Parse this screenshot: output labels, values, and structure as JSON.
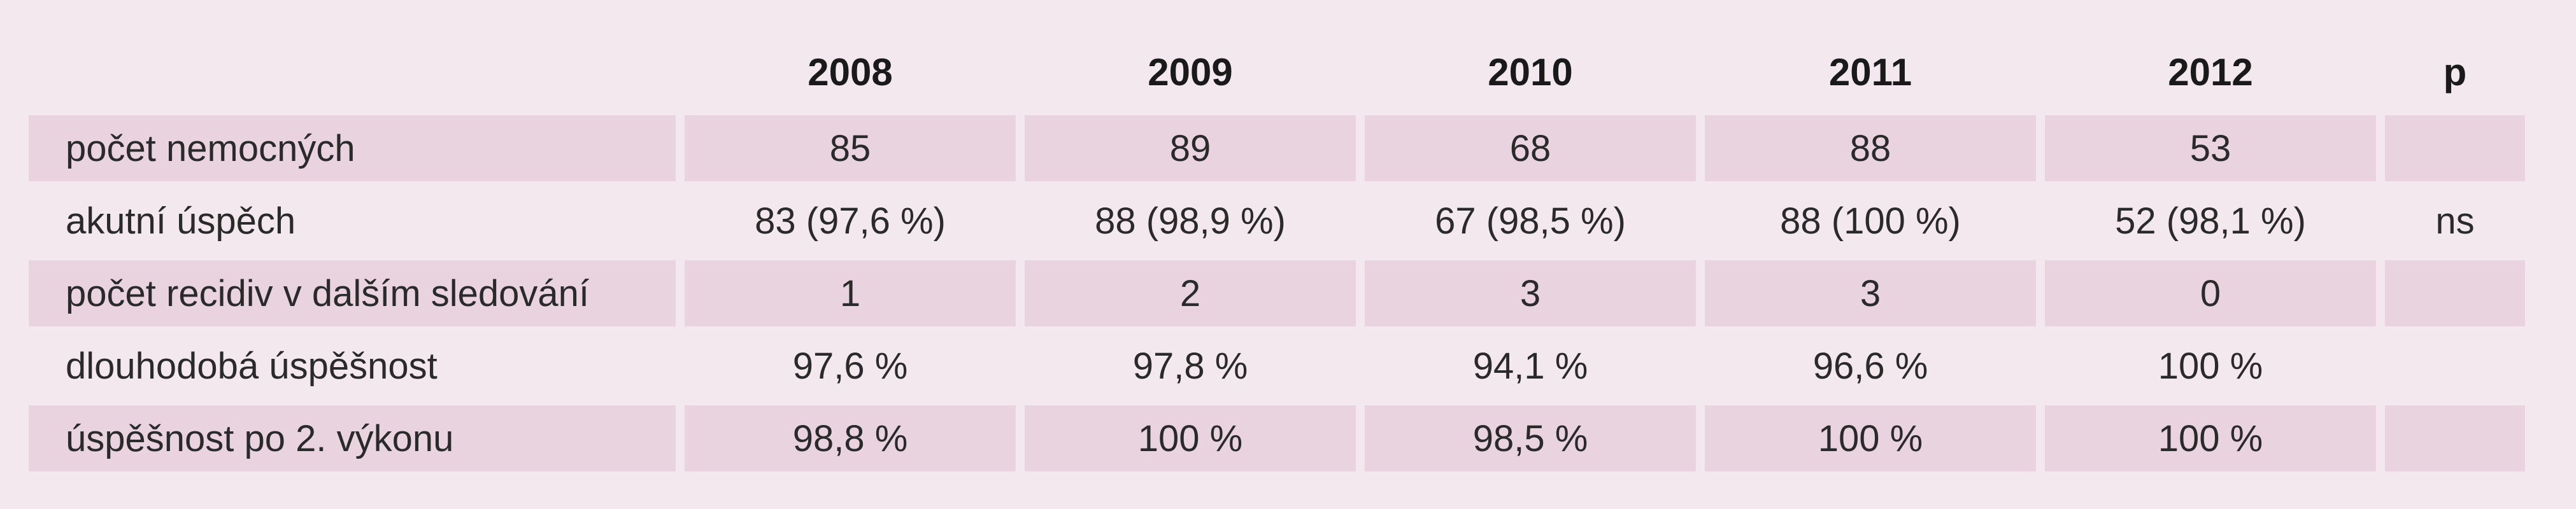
{
  "table": {
    "columns": [
      "",
      "2008",
      "2009",
      "2010",
      "2011",
      "2012",
      "p"
    ],
    "rows": [
      {
        "label": "počet nemocných",
        "values": [
          "85",
          "89",
          "68",
          "88",
          "53",
          ""
        ]
      },
      {
        "label": "akutní úspěch",
        "values": [
          "83 (97,6 %)",
          "88 (98,9 %)",
          "67 (98,5 %)",
          "88 (100 %)",
          "52 (98,1 %)",
          "ns"
        ]
      },
      {
        "label": "počet recidiv v dalším sledování",
        "values": [
          "1",
          "2",
          "3",
          "3",
          "0",
          ""
        ]
      },
      {
        "label": "dlouhodobá úspěšnost",
        "values": [
          "97,6 %",
          "97,8 %",
          "94,1 %",
          "96,6 %",
          "100 %",
          ""
        ]
      },
      {
        "label": "úspěšnost po 2. výkonu",
        "values": [
          "98,8 %",
          "100 %",
          "98,5 %",
          "100 %",
          "100 %",
          ""
        ]
      }
    ]
  },
  "colors": {
    "background": "#f3e8ed",
    "row_shade": "#e8d3de",
    "text": "#222222"
  }
}
